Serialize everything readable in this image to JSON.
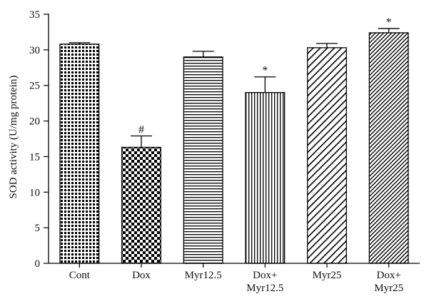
{
  "chart_data": {
    "type": "bar",
    "ylabel": "SOD activity (U/mg protein)",
    "ylim": [
      0,
      35
    ],
    "yticks": [
      0,
      5,
      10,
      15,
      20,
      25,
      30,
      35
    ],
    "grid": false,
    "bars": [
      {
        "label": [
          "Cont"
        ],
        "value": 30.8,
        "error": 0.2,
        "annotation": "",
        "pattern": "crosshatch"
      },
      {
        "label": [
          "Dox"
        ],
        "value": 16.3,
        "error": 1.6,
        "annotation": "#",
        "pattern": "checker"
      },
      {
        "label": [
          "Myr12.5"
        ],
        "value": 29.0,
        "error": 0.8,
        "annotation": "",
        "pattern": "horizontal-lines"
      },
      {
        "label": [
          "Dox+",
          "Myr12.5"
        ],
        "value": 24.0,
        "error": 2.2,
        "annotation": "*",
        "pattern": "vertical-lines"
      },
      {
        "label": [
          "Myr25"
        ],
        "value": 30.3,
        "error": 0.6,
        "annotation": "",
        "pattern": "diagonal-wide"
      },
      {
        "label": [
          "Dox+",
          "Myr25"
        ],
        "value": 32.4,
        "error": 0.6,
        "annotation": "*",
        "pattern": "diagonal-dense"
      }
    ]
  }
}
